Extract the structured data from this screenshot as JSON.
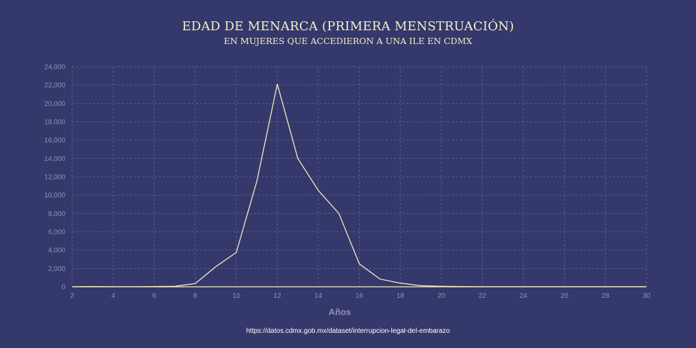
{
  "header": {
    "title": "EDAD DE MENARCA (PRIMERA MENSTRUACIÓN)",
    "subtitle": "EN MUJERES QUE ACCEDIERON A UNA ILE EN CDMX"
  },
  "footer": {
    "source": "https://datos.cdmx.gob.mx/dataset/interrupcion-legal-del-embarazo"
  },
  "colors": {
    "background": "#35386a",
    "line": "#f6efc9",
    "grid": "#5a5e8f",
    "axis_text": "#8f92b8",
    "baseline": "#f6efc9"
  },
  "chart_data": {
    "type": "line",
    "title": "",
    "xlabel": "Años",
    "ylabel": "",
    "xlim": [
      2,
      30
    ],
    "ylim": [
      0,
      24000
    ],
    "x_ticks": [
      2,
      4,
      6,
      8,
      10,
      12,
      14,
      16,
      18,
      20,
      22,
      24,
      26,
      28,
      30
    ],
    "x_tick_labels": [
      "2",
      "4",
      "6",
      "8",
      "10",
      "12",
      "14",
      "16",
      "18",
      "20",
      "22",
      "24",
      "26",
      "28",
      "30"
    ],
    "y_ticks": [
      0,
      2000,
      4000,
      6000,
      8000,
      10000,
      12000,
      14000,
      16000,
      18000,
      20000,
      22000,
      24000
    ],
    "y_tick_labels": [
      "0",
      "2,000",
      "4,000",
      "6,000",
      "8,000",
      "10,000",
      "12,000",
      "14,000",
      "16,000",
      "18,000",
      "20,000",
      "22,000",
      "24,000"
    ],
    "grid": true,
    "legend": "none",
    "series": [
      {
        "x": [
          2,
          3,
          4,
          5,
          6,
          7,
          8,
          9,
          10,
          11,
          12,
          13,
          14,
          15,
          16,
          17,
          18,
          19,
          20,
          21,
          22,
          23,
          24,
          25,
          26,
          27,
          28,
          29,
          30
        ],
        "values": [
          0,
          30,
          10,
          10,
          20,
          50,
          350,
          2200,
          3750,
          11500,
          22100,
          14000,
          10500,
          8000,
          2500,
          850,
          400,
          120,
          50,
          20,
          10,
          5,
          5,
          5,
          5,
          5,
          5,
          5,
          5
        ]
      }
    ]
  }
}
